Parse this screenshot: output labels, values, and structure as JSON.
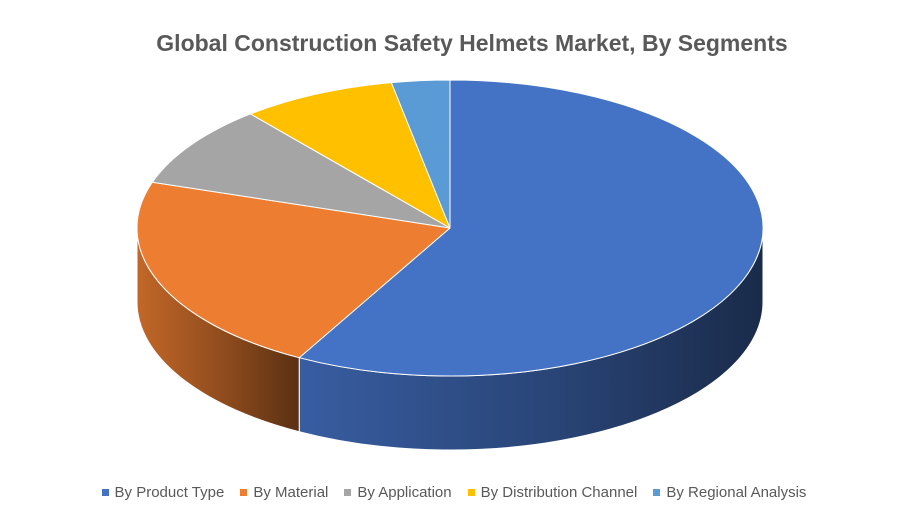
{
  "chart_data": {
    "type": "pie",
    "title": "Global Construction Safety Helmets Market, By Segments",
    "categories": [
      "By Product Type",
      "By Material",
      "By Application",
      "By Distribution Channel",
      "By Regional Analysis"
    ],
    "values": [
      58,
      22,
      9,
      8,
      3
    ],
    "colors": [
      "#4472C4",
      "#ED7D31",
      "#A5A5A5",
      "#FFC000",
      "#5B9BD5"
    ],
    "style": "3d-exploded-none",
    "legend_position": "bottom"
  }
}
